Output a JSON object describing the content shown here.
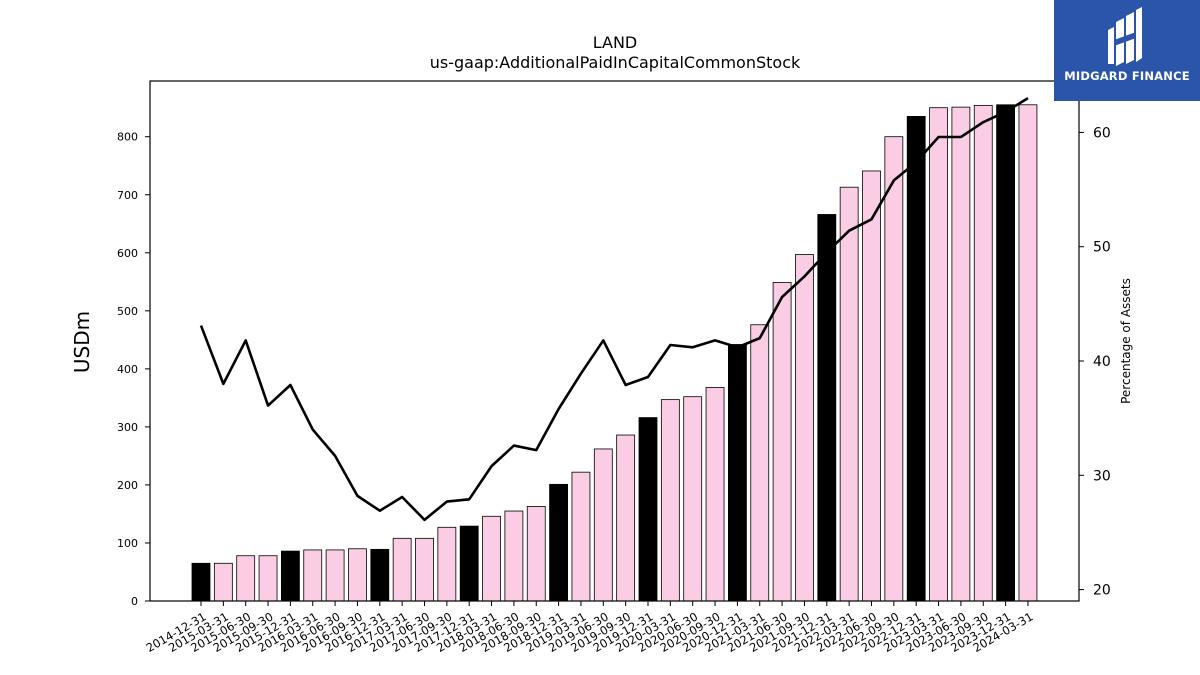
{
  "chart_data": {
    "type": "bar",
    "title": "LAND",
    "subtitle": "us-gaap:AdditionalPaidInCapitalCommonStock",
    "ylabel": "USDm",
    "y2label": "Percentage of Assets",
    "ylim": [
      0,
      896
    ],
    "y2lim": [
      19,
      64.5
    ],
    "yticks": [
      0,
      100,
      200,
      300,
      400,
      500,
      600,
      700,
      800
    ],
    "y2ticks": [
      20,
      30,
      40,
      50,
      60
    ],
    "categories": [
      "2014-12-31",
      "2015-03-31",
      "2015-06-30",
      "2015-09-30",
      "2015-12-31",
      "2016-03-31",
      "2016-06-30",
      "2016-09-30",
      "2016-12-31",
      "2017-03-31",
      "2017-06-30",
      "2017-09-30",
      "2017-12-31",
      "2018-03-31",
      "2018-06-30",
      "2018-09-30",
      "2018-12-31",
      "2019-03-31",
      "2019-06-30",
      "2019-09-30",
      "2019-12-31",
      "2020-03-31",
      "2020-06-30",
      "2020-09-30",
      "2020-12-31",
      "2021-03-31",
      "2021-06-30",
      "2021-09-30",
      "2021-12-31",
      "2022-03-31",
      "2022-06-30",
      "2022-09-30",
      "2022-12-31",
      "2023-03-31",
      "2023-06-30",
      "2023-09-30",
      "2023-12-31",
      "2024-03-31"
    ],
    "values": [
      65,
      65,
      78,
      78,
      86,
      88,
      88,
      90,
      89,
      108,
      108,
      127,
      129,
      146,
      155,
      163,
      201,
      222,
      262,
      286,
      316,
      347,
      352,
      368,
      442,
      476,
      549,
      597,
      666,
      713,
      741,
      800,
      835,
      850,
      851,
      854,
      855,
      855
    ],
    "highlight": [
      true,
      false,
      false,
      false,
      true,
      false,
      false,
      false,
      true,
      false,
      false,
      false,
      true,
      false,
      false,
      false,
      true,
      false,
      false,
      false,
      true,
      false,
      false,
      false,
      true,
      false,
      false,
      false,
      true,
      false,
      false,
      false,
      true,
      false,
      false,
      false,
      true,
      false
    ],
    "series": [
      {
        "values": [
          43.1,
          38.0,
          41.8,
          36.1,
          37.9,
          34.0,
          31.7,
          28.2,
          26.9,
          28.1,
          26.1,
          27.7,
          27.9,
          30.8,
          32.6,
          32.2,
          35.8,
          38.9,
          41.8,
          37.9,
          38.6,
          41.4,
          41.2,
          41.8,
          41.2,
          42.0,
          45.6,
          47.4,
          49.5,
          51.4,
          52.4,
          55.8,
          57.4,
          59.6,
          59.6,
          60.9,
          61.8,
          63.0
        ]
      }
    ],
    "colors": {
      "bar": "#fbcde4",
      "highlight": "#000000",
      "line": "#000000"
    },
    "grid": false
  },
  "logo": {
    "text": "MIDGARD FINANCE"
  }
}
